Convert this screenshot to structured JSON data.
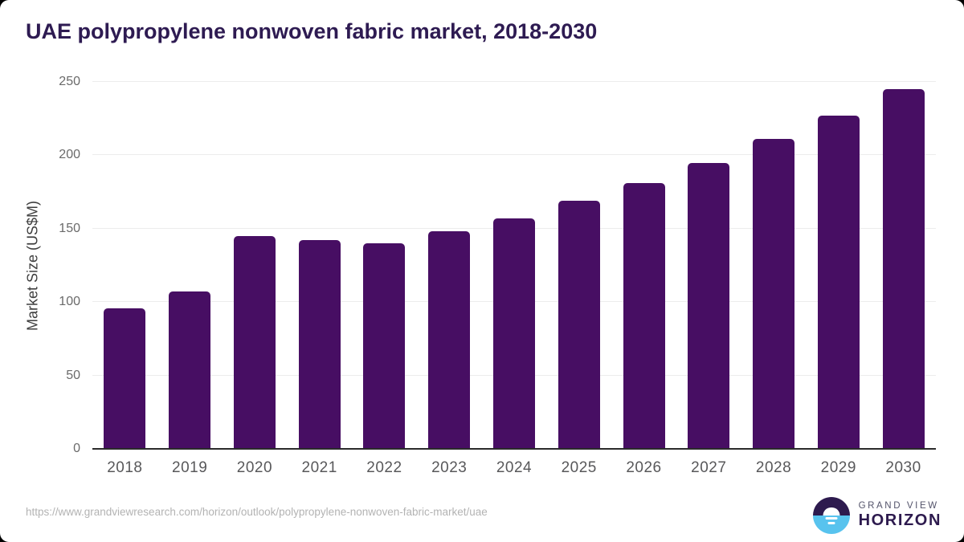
{
  "title": "UAE polypropylene nonwoven fabric market, 2018-2030",
  "chart_data": {
    "type": "bar",
    "categories": [
      "2018",
      "2019",
      "2020",
      "2021",
      "2022",
      "2023",
      "2024",
      "2025",
      "2026",
      "2027",
      "2028",
      "2029",
      "2030"
    ],
    "values": [
      96,
      107,
      145,
      142,
      140,
      148,
      157,
      169,
      181,
      195,
      211,
      227,
      245
    ],
    "title": "UAE polypropylene nonwoven fabric market, 2018-2030",
    "xlabel": "",
    "ylabel": "Market Size (US$M)",
    "ylim": [
      0,
      250
    ],
    "yticks": [
      0,
      50,
      100,
      150,
      200,
      250
    ],
    "grid": true,
    "legend": false,
    "bar_color": "#470e63"
  },
  "footer": {
    "source_url": "https://www.grandviewresearch.com/horizon/outlook/polypropylene-nonwoven-fabric-market/uae",
    "logo": {
      "brand_line1": "GRAND VIEW",
      "brand_line2": "HORIZON"
    }
  },
  "colors": {
    "bar": "#470e63",
    "title": "#2e1b52",
    "axis_label": "#3e3e3e",
    "y_tick_label": "#6a6a6a",
    "x_tick_label": "#58585a",
    "gridline": "#ececec",
    "axis_line": "#2b2b2b",
    "url": "#b3b3b3",
    "logo_dark": "#2d1a4e",
    "logo_blue": "#58c3ee",
    "logo_gray_text": "#53536a"
  }
}
